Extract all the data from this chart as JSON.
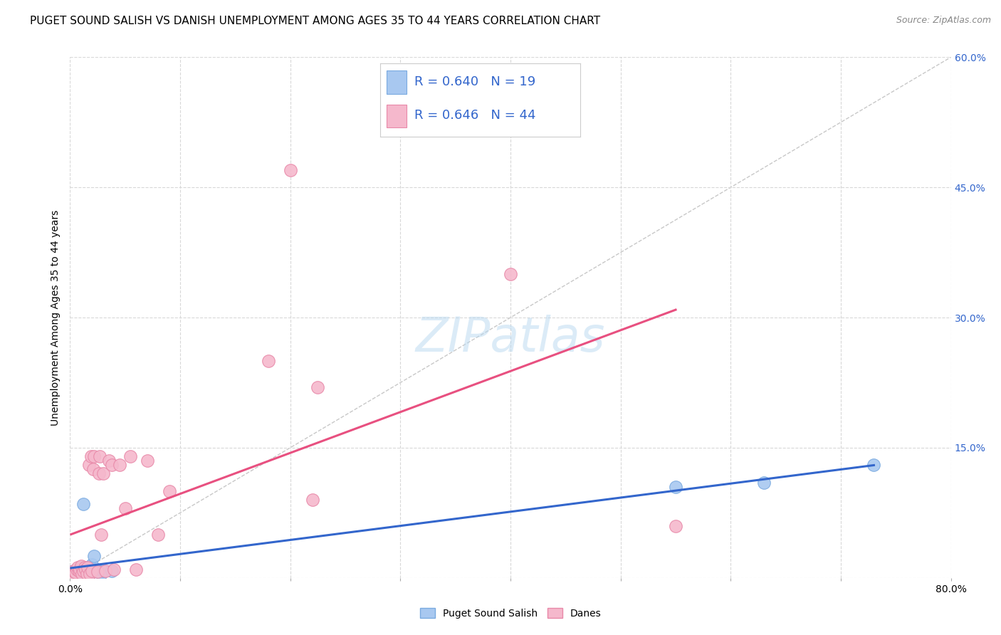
{
  "title": "PUGET SOUND SALISH VS DANISH UNEMPLOYMENT AMONG AGES 35 TO 44 YEARS CORRELATION CHART",
  "source": "Source: ZipAtlas.com",
  "ylabel": "Unemployment Among Ages 35 to 44 years",
  "x_ticks": [
    0.0,
    0.1,
    0.2,
    0.3,
    0.4,
    0.5,
    0.6,
    0.7,
    0.8
  ],
  "x_tick_labels": [
    "0.0%",
    "",
    "",
    "",
    "",
    "",
    "",
    "",
    "80.0%"
  ],
  "y_ticks": [
    0.0,
    0.15,
    0.3,
    0.45,
    0.6
  ],
  "y_tick_labels_right": [
    "",
    "15.0%",
    "30.0%",
    "45.0%",
    "60.0%"
  ],
  "xlim": [
    0.0,
    0.8
  ],
  "ylim": [
    0.0,
    0.6
  ],
  "background_color": "#ffffff",
  "grid_color": "#d8d8d8",
  "series1_name": "Puget Sound Salish",
  "series1_color": "#a8c8f0",
  "series1_edge_color": "#7aaae0",
  "series1_line_color": "#3366cc",
  "series1_R": 0.64,
  "series1_N": 19,
  "series1_x": [
    0.001,
    0.002,
    0.003,
    0.005,
    0.008,
    0.009,
    0.01,
    0.012,
    0.015,
    0.018,
    0.02,
    0.022,
    0.025,
    0.028,
    0.03,
    0.038,
    0.55,
    0.63,
    0.73
  ],
  "series1_y": [
    0.002,
    0.005,
    0.008,
    0.004,
    0.008,
    0.01,
    0.012,
    0.085,
    0.01,
    0.005,
    0.015,
    0.025,
    0.008,
    0.005,
    0.008,
    0.008,
    0.105,
    0.11,
    0.13
  ],
  "series2_name": "Danes",
  "series2_color": "#f5b8cc",
  "series2_edge_color": "#e888a8",
  "series2_line_color": "#e85080",
  "series2_R": 0.646,
  "series2_N": 44,
  "series2_x": [
    0.001,
    0.002,
    0.003,
    0.004,
    0.005,
    0.006,
    0.007,
    0.008,
    0.009,
    0.01,
    0.011,
    0.012,
    0.013,
    0.014,
    0.015,
    0.016,
    0.017,
    0.018,
    0.019,
    0.02,
    0.021,
    0.022,
    0.025,
    0.026,
    0.027,
    0.028,
    0.03,
    0.032,
    0.035,
    0.038,
    0.04,
    0.045,
    0.05,
    0.055,
    0.06,
    0.07,
    0.08,
    0.09,
    0.18,
    0.2,
    0.22,
    0.225,
    0.4,
    0.55
  ],
  "series2_y": [
    0.003,
    0.005,
    0.008,
    0.007,
    0.006,
    0.01,
    0.012,
    0.008,
    0.01,
    0.014,
    0.005,
    0.008,
    0.012,
    0.01,
    0.005,
    0.012,
    0.13,
    0.005,
    0.14,
    0.008,
    0.125,
    0.14,
    0.007,
    0.12,
    0.14,
    0.05,
    0.12,
    0.008,
    0.135,
    0.13,
    0.01,
    0.13,
    0.08,
    0.14,
    0.01,
    0.135,
    0.05,
    0.1,
    0.25,
    0.47,
    0.09,
    0.22,
    0.35,
    0.06
  ],
  "legend_color": "#3366cc",
  "diagonal_line_color": "#c8c8c8",
  "title_fontsize": 11,
  "source_fontsize": 9,
  "axis_label_fontsize": 10,
  "tick_fontsize": 10,
  "legend_fontsize": 13,
  "watermark_text": "ZIPatlas",
  "watermark_color": "#b8d8f0",
  "watermark_alpha": 0.5,
  "watermark_fontsize": 48
}
